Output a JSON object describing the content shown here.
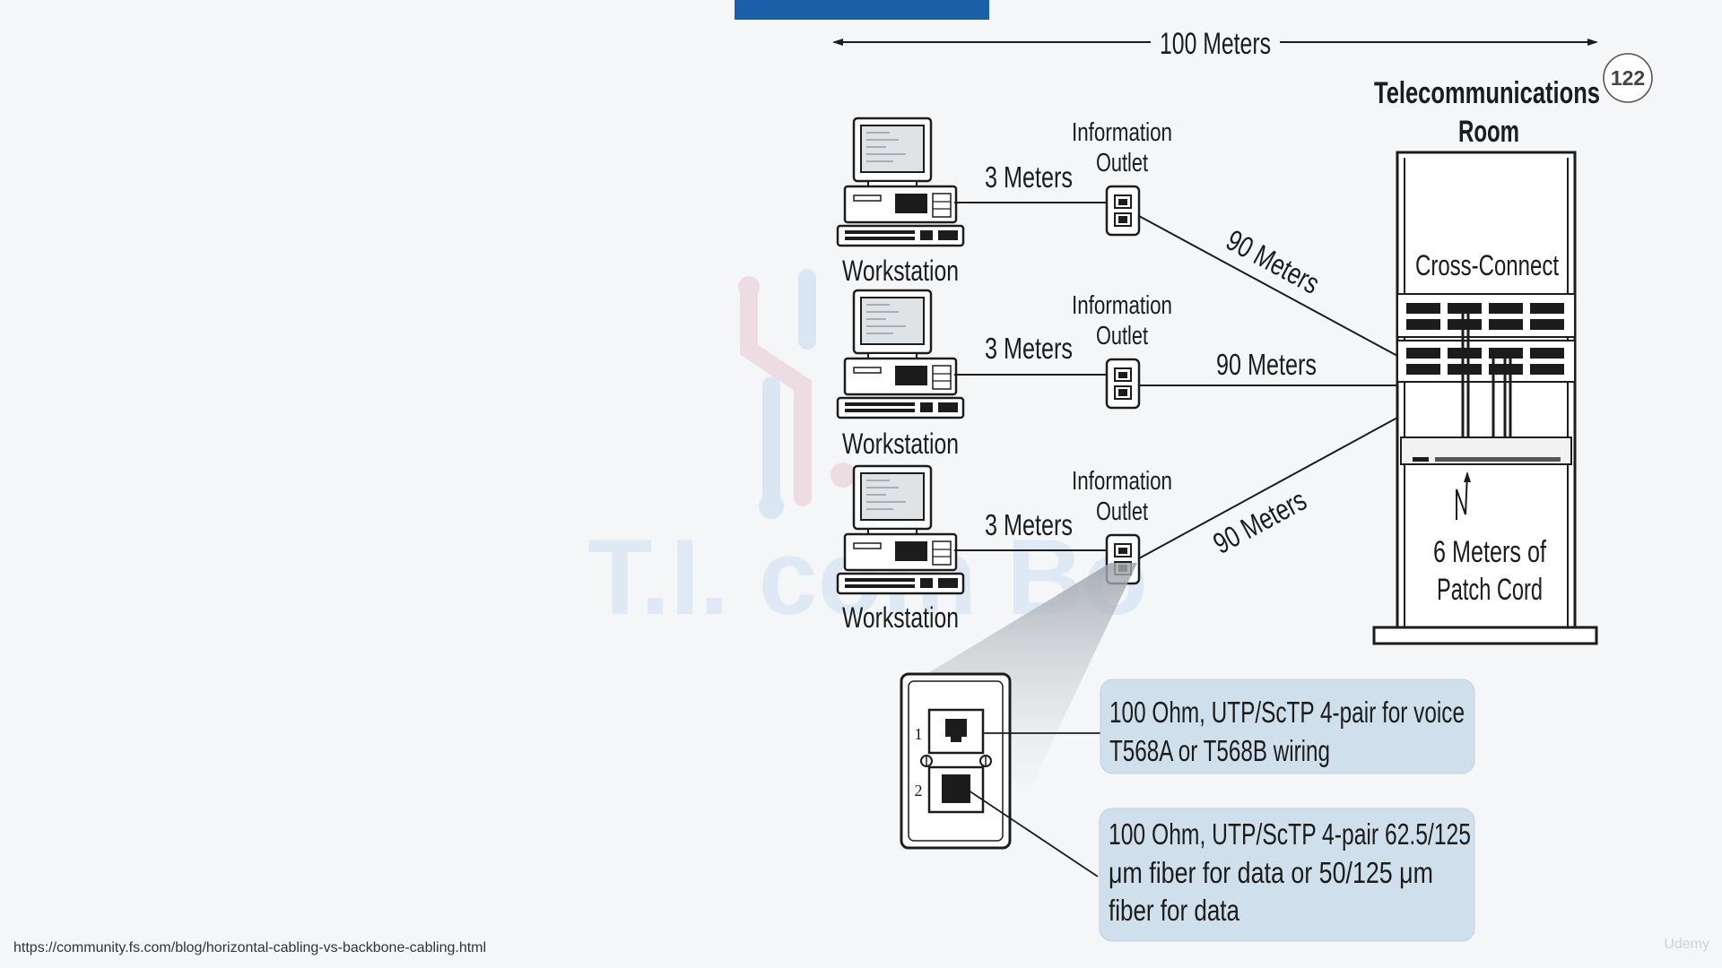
{
  "slide_number": "122",
  "top_span_label": "100 Meters",
  "telecom_room": {
    "title_line1": "Telecommunications",
    "title_line2": "Room",
    "cross_connect_label": "Cross-Connect",
    "patch_cord_line1": "6 Meters of",
    "patch_cord_line2": "Patch Cord"
  },
  "workstations": [
    {
      "label": "Workstation",
      "cable_length": "3 Meters",
      "outlet_line1": "Information",
      "outlet_line2": "Outlet",
      "run_length": "90 Meters"
    },
    {
      "label": "Workstation",
      "cable_length": "3 Meters",
      "outlet_line1": "Information",
      "outlet_line2": "Outlet",
      "run_length": "90 Meters"
    },
    {
      "label": "Workstation",
      "cable_length": "3 Meters",
      "outlet_line1": "Information",
      "outlet_line2": "Outlet",
      "run_length": "90 Meters"
    }
  ],
  "outlet_detail": {
    "port1_number": "1",
    "port2_number": "2",
    "callout_voice_line1": "100 Ohm, UTP/ScTP 4-pair for voice",
    "callout_voice_line2": "T568A or T568B wiring",
    "callout_data_line1": "100 Ohm, UTP/ScTP 4-pair 62.5/125",
    "callout_data_line2": "μm fiber for data or 50/125 μm",
    "callout_data_line3": "fiber for data"
  },
  "watermark_text": "T.I. com Bo",
  "source_url": "https://community.fs.com/blog/horizontal-cabling-vs-backbone-cabling.html",
  "brand_mark": "Udemy",
  "colors": {
    "background": "#f4f6f8",
    "top_bar": "#1b5fa8",
    "callout_fill": "#cfe0ec",
    "line": "#1c1c1c"
  },
  "icons": {
    "workstation": "desktop-computer-icon",
    "outlet": "wall-outlet-icon",
    "rack": "equipment-rack-icon"
  }
}
